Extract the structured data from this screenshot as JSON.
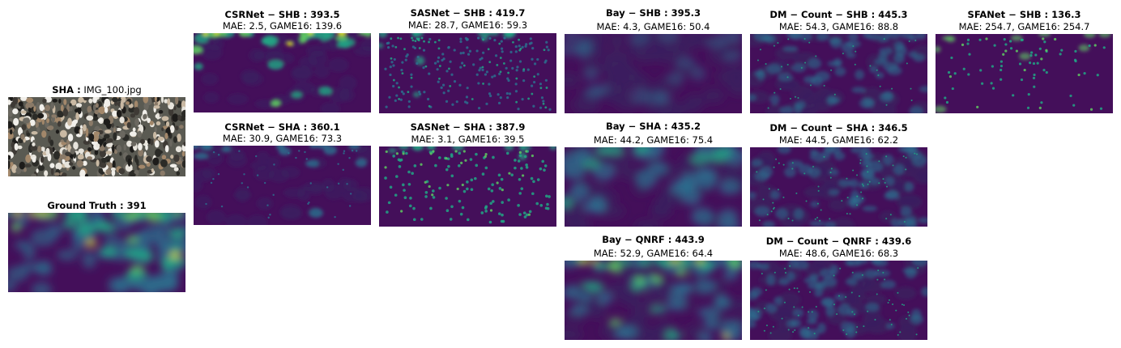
{
  "input": {
    "dataset": "SHA :",
    "filename": "IMG_100.jpg",
    "image_description_icon": "crowd-photo"
  },
  "ground_truth": {
    "title": "Ground Truth : 391"
  },
  "panels": {
    "csrnet_shb": {
      "title": "CSRNet − SHB : 393.5",
      "metrics": "MAE: 2.5, GAME16: 139.6"
    },
    "csrnet_sha": {
      "title": "CSRNet − SHA : 360.1",
      "metrics": "MAE: 30.9, GAME16: 73.3"
    },
    "sasnet_shb": {
      "title": "SASNet − SHB : 419.7",
      "metrics": "MAE: 28.7, GAME16: 59.3"
    },
    "sasnet_sha": {
      "title": "SASNet − SHA : 387.9",
      "metrics": "MAE: 3.1, GAME16: 39.5"
    },
    "bay_shb": {
      "title": "Bay − SHB : 395.3",
      "metrics": "MAE: 4.3, GAME16: 50.4"
    },
    "bay_sha": {
      "title": "Bay − SHA : 435.2",
      "metrics": "MAE: 44.2, GAME16: 75.4"
    },
    "bay_qnrf": {
      "title": "Bay − QNRF : 443.9",
      "metrics": "MAE: 52.9, GAME16: 64.4"
    },
    "dm_shb": {
      "title": "DM − Count − SHB : 445.3",
      "metrics": "MAE: 54.3, GAME16: 88.8"
    },
    "dm_sha": {
      "title": "DM − Count − SHA : 346.5",
      "metrics": "MAE: 44.5, GAME16: 62.2"
    },
    "dm_qnrf": {
      "title": "DM − Count − QNRF : 439.6",
      "metrics": "MAE: 48.6, GAME16: 68.3"
    },
    "sfanet_shb": {
      "title": "SFANet − SHB : 136.3",
      "metrics": "MAE: 254.7, GAME16: 254.7"
    }
  },
  "colors": {
    "background_map": "#440f5a",
    "dark_map": "#3b1f5f",
    "mid": "#2c6f8e",
    "teal": "#21a685",
    "green": "#5ec962",
    "yellow": "#d8e219"
  }
}
